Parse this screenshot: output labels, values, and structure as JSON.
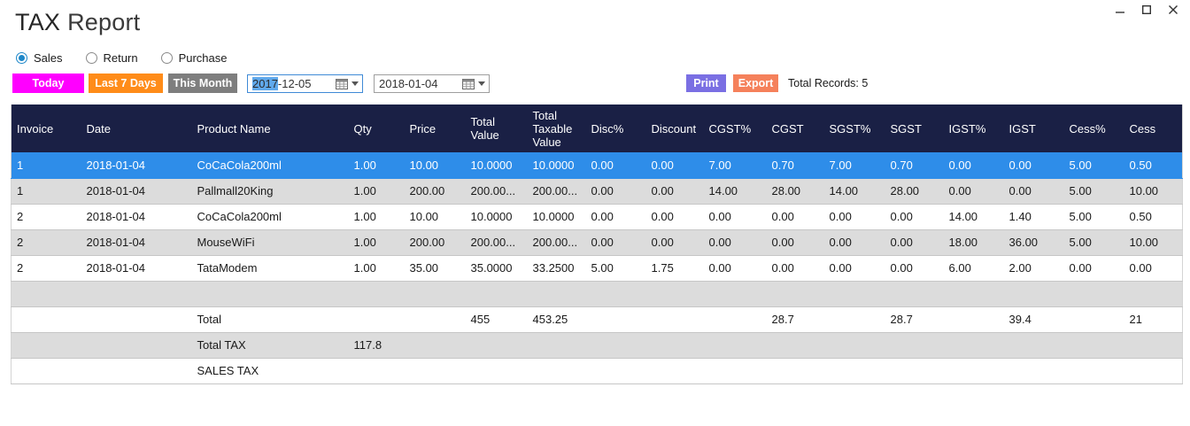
{
  "window": {
    "title_strong": "TAX",
    "title_light": "Report",
    "controls": [
      "minimize",
      "maximize",
      "close"
    ]
  },
  "filters": {
    "radios": [
      {
        "label": "Sales",
        "selected": true
      },
      {
        "label": "Return",
        "selected": false
      },
      {
        "label": "Purchase",
        "selected": false
      }
    ]
  },
  "toolbar": {
    "today_label": "Today",
    "last7_label": "Last 7 Days",
    "month_label": "This Month",
    "date_from": {
      "highlighted": "2017",
      "rest": "-12-05"
    },
    "date_to": "2018-01-04",
    "print_label": "Print",
    "export_label": "Export",
    "total_records": "Total Records: 5"
  },
  "colors": {
    "today": "#ff00ff",
    "last7": "#ff8c19",
    "month": "#7e7e7e",
    "print": "#7a6fe3",
    "export": "#f5815b",
    "header_bg": "#1a2045",
    "selected_row": "#2e8de9",
    "alt_row": "#dcdcdc"
  },
  "table": {
    "columns": [
      "Invoice",
      "Date",
      "Product Name",
      "Qty",
      "Price",
      "Total Value",
      "Total Taxable Value",
      "Disc%",
      "Discount",
      "CGST%",
      "CGST",
      "SGST%",
      "SGST",
      "IGST%",
      "IGST",
      "Cess%",
      "Cess"
    ],
    "rows": [
      {
        "selected": true,
        "cells": [
          "1",
          "2018-01-04",
          "CoCaCola200ml",
          "1.00",
          "10.00",
          "10.0000",
          "10.0000",
          "0.00",
          "0.00",
          "7.00",
          "0.70",
          "7.00",
          "0.70",
          "0.00",
          "0.00",
          "5.00",
          "0.50"
        ]
      },
      {
        "selected": false,
        "cells": [
          "1",
          "2018-01-04",
          "Pallmall20King",
          "1.00",
          "200.00",
          "200.00...",
          "200.00...",
          "0.00",
          "0.00",
          "14.00",
          "28.00",
          "14.00",
          "28.00",
          "0.00",
          "0.00",
          "5.00",
          "10.00"
        ]
      },
      {
        "selected": false,
        "cells": [
          "2",
          "2018-01-04",
          "CoCaCola200ml",
          "1.00",
          "10.00",
          "10.0000",
          "10.0000",
          "0.00",
          "0.00",
          "0.00",
          "0.00",
          "0.00",
          "0.00",
          "14.00",
          "1.40",
          "5.00",
          "0.50"
        ]
      },
      {
        "selected": false,
        "cells": [
          "2",
          "2018-01-04",
          "MouseWiFi",
          "1.00",
          "200.00",
          "200.00...",
          "200.00...",
          "0.00",
          "0.00",
          "0.00",
          "0.00",
          "0.00",
          "0.00",
          "18.00",
          "36.00",
          "5.00",
          "10.00"
        ]
      },
      {
        "selected": false,
        "cells": [
          "2",
          "2018-01-04",
          "TataModem",
          "1.00",
          "35.00",
          "35.0000",
          "33.2500",
          "5.00",
          "1.75",
          "0.00",
          "0.00",
          "0.00",
          "0.00",
          "6.00",
          "2.00",
          "0.00",
          "0.00"
        ]
      }
    ],
    "summary_rows": [
      {
        "kind": "spacer",
        "cells": [
          "",
          "",
          "",
          "",
          "",
          "",
          "",
          "",
          "",
          "",
          "",
          "",
          "",
          "",
          "",
          "",
          ""
        ]
      },
      {
        "kind": "total",
        "cells": [
          "",
          "",
          "Total",
          "",
          "",
          "455",
          "453.25",
          "",
          "",
          "",
          "28.7",
          "",
          "28.7",
          "",
          "39.4",
          "",
          "21"
        ]
      },
      {
        "kind": "total-tax",
        "cells": [
          "",
          "",
          "Total TAX",
          "117.8",
          "",
          "",
          "",
          "",
          "",
          "",
          "",
          "",
          "",
          "",
          "",
          "",
          ""
        ]
      },
      {
        "kind": "sales-tax",
        "cells": [
          "",
          "",
          "SALES TAX",
          "",
          "",
          "",
          "",
          "",
          "",
          "",
          "",
          "",
          "",
          "",
          "",
          "",
          ""
        ]
      }
    ]
  }
}
